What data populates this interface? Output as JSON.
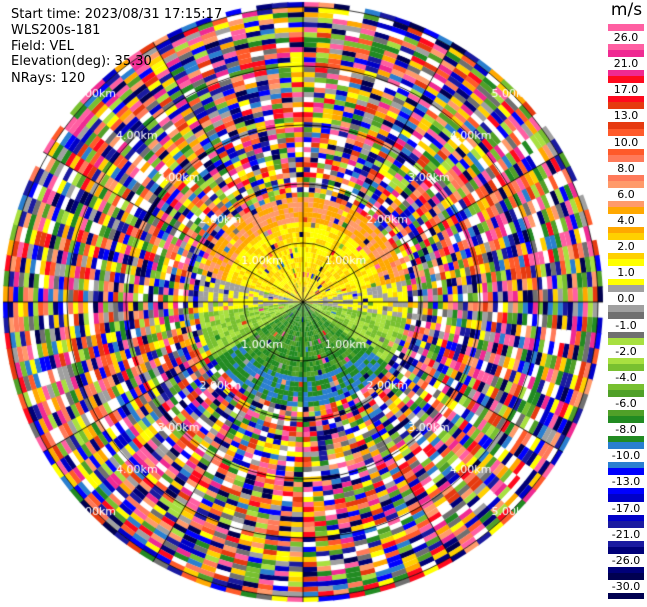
{
  "info": {
    "start_time": "Start time: 2023/08/31 17:15:17",
    "instrument": "WLS200s-181",
    "field": "Field: VEL",
    "elevation": "Elevation(deg): 35.30",
    "nrays": "NRays: 120"
  },
  "ring_labels": [
    "1.00km",
    "2.00km",
    "3.00km",
    "4.00km",
    "5.00km"
  ],
  "colorbar": {
    "unit": "m/s",
    "labels": [
      "26.0",
      "21.0",
      "17.0",
      "13.0",
      "10.0",
      "8.0",
      "6.0",
      "4.0",
      "2.0",
      "1.0",
      "0.0",
      "-1.0",
      "-2.0",
      "-4.0",
      "-6.0",
      "-8.0",
      "-10.0",
      "-13.0",
      "-17.0",
      "-21.0",
      "-26.0",
      "-30.0"
    ],
    "colors": [
      "#ff5fa2",
      "#ef2a92",
      "#ff0a1e",
      "#e63a10",
      "#ff5a2a",
      "#ff7a5a",
      "#ff9a6a",
      "#ffa800",
      "#ffd000",
      "#ffff00",
      "#a0a0a0",
      "#707070",
      "#a8e040",
      "#78c030",
      "#50a028",
      "#228b22",
      "#2a7fd0",
      "#0000ff",
      "#0000c8",
      "#1a1aa0",
      "#000078",
      "#000050"
    ]
  }
}
